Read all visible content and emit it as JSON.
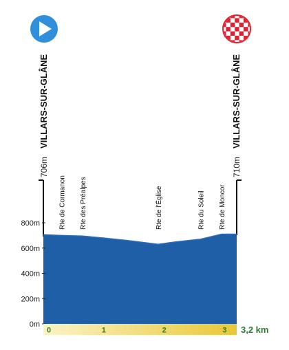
{
  "chart_data": {
    "type": "area",
    "title": "",
    "xlabel": "",
    "ylabel": "",
    "x_unit": "km",
    "y_unit": "m",
    "xlim": [
      0,
      3.2
    ],
    "ylim": [
      0,
      800
    ],
    "grid": false,
    "series": [
      {
        "x": [
          0,
          0.3,
          0.65,
          1.0,
          1.4,
          1.9,
          2.2,
          2.6,
          2.95,
          3.2
        ],
        "y": [
          706,
          700,
          695,
          680,
          660,
          630,
          650,
          670,
          710,
          710
        ]
      }
    ],
    "y_ticks": [
      "0m",
      "200m",
      "400m",
      "600m",
      "800m"
    ],
    "y_tick_values": [
      0,
      200,
      400,
      600,
      800
    ],
    "x_ticks": [
      "0",
      "1",
      "2",
      "3"
    ],
    "x_tick_values": [
      0,
      1,
      2,
      3
    ],
    "distance_label": "3,2 km",
    "start": {
      "name": "VILLARS-SUR-GLÂNE",
      "altitude": "706m"
    },
    "finish": {
      "name": "VILLARS-SUR-GLÂNE",
      "altitude": "710m"
    },
    "waypoints": [
      {
        "label": "Rte de Cormanon",
        "x": 0.3
      },
      {
        "label": "Rte des Préalpes",
        "x": 0.65
      },
      {
        "label": "Rte de l'Église",
        "x": 1.9
      },
      {
        "label": "Rte du Soleil",
        "x": 2.6
      },
      {
        "label": "Rte de Moncor",
        "x": 2.95
      }
    ],
    "colors": {
      "profile_fill": "#1f5fa8",
      "profile_top": "#2e6db4",
      "start_icon": "#2f8fdb",
      "finish_icon": "#e0202f",
      "bar_start": "#fbf3c6",
      "bar_end": "#e9c737",
      "bar_text": "#3a7d1e",
      "distance_text": "#2e7d32",
      "axis_text": "#222222"
    },
    "icons": {
      "start": "play-icon",
      "finish": "checkered-flag-icon"
    }
  }
}
